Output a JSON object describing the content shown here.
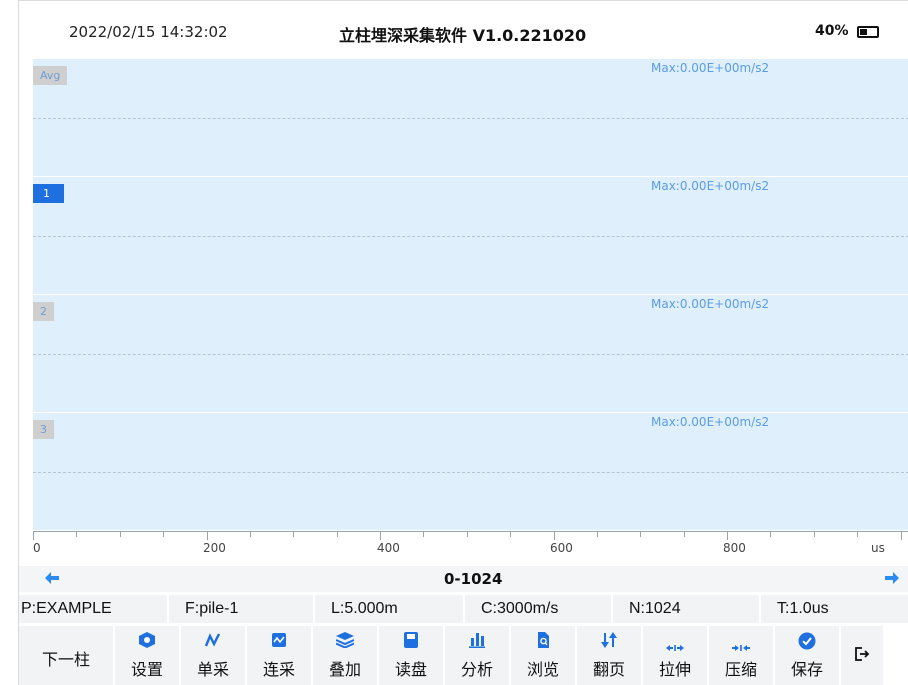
{
  "status": {
    "datetime": "2022/02/15 14:32:02",
    "title": "立柱埋深采集软件 V1.0.221020",
    "battery": "40%"
  },
  "channels": [
    {
      "label": "Avg",
      "max": "Max:0.00E+00m/s2",
      "active": false
    },
    {
      "label": "1",
      "max": "Max:0.00E+00m/s2",
      "active": true
    },
    {
      "label": "2",
      "max": "Max:0.00E+00m/s2",
      "active": false
    },
    {
      "label": "3",
      "max": "Max:0.00E+00m/s2",
      "active": false
    }
  ],
  "axis": {
    "labels": [
      "0",
      "200",
      "400",
      "600",
      "800"
    ],
    "unit": "us"
  },
  "nav": {
    "range": "0-1024"
  },
  "info": {
    "project": "P:EXAMPLE",
    "file": "F:pile-1",
    "length": "L:5.000m",
    "speed": "C:3000m/s",
    "samples": "N:1024",
    "interval": "T:1.0us"
  },
  "toolbar": {
    "next_column": "下一柱",
    "settings": "设置",
    "single": "单采",
    "continuous": "连采",
    "stack": "叠加",
    "read_disk": "读盘",
    "analyze": "分析",
    "browse": "浏览",
    "page_flip": "翻页",
    "stretch": "拉伸",
    "compress": "压缩",
    "save": "保存"
  },
  "colors": {
    "accent": "#1e6fe0",
    "plot_bg": "#dff0fc",
    "max_text": "#5b9be6"
  }
}
